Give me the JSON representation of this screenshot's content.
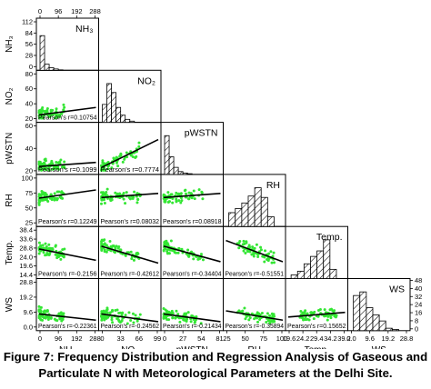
{
  "caption": {
    "line1": "Figure 7: Frequency Distribution and Regression Analysis of Gaseous and",
    "line2": "Particulate N with Meteorological Parameters at the Delhi Site."
  },
  "colors": {
    "scatter": "#33e633",
    "fit": "#000000",
    "hatch": "#000000",
    "frame": "#000000"
  },
  "chart_data": {
    "type": "scatter-matrix",
    "variables": [
      {
        "key": "NH3",
        "label": "NH₃",
        "ylabel": "NH₃",
        "range": [
          0,
          300
        ],
        "xticks": [
          "0",
          "96",
          "192",
          "288"
        ],
        "yticks": []
      },
      {
        "key": "NO2",
        "label": "NO₂",
        "ylabel": "NO₂",
        "range": [
          0,
          100
        ],
        "xticks": [
          "0",
          "33",
          "66",
          "99"
        ],
        "yticks": [
          "80",
          "60",
          "40",
          "20"
        ]
      },
      {
        "key": "pWSTN",
        "label": "pWSTN",
        "ylabel": "pWSTN",
        "range": [
          0,
          90
        ],
        "xticks": [
          "0",
          "27",
          "54",
          "81"
        ],
        "yticks": [
          "60",
          "40",
          "20"
        ]
      },
      {
        "key": "RH",
        "label": "RH",
        "ylabel": "RH",
        "range": [
          20,
          100
        ],
        "xticks": [
          "25",
          "50",
          "75",
          "100"
        ],
        "yticks": [
          "100",
          "75",
          "50",
          "25"
        ]
      },
      {
        "key": "Temp",
        "label": "Temp.",
        "ylabel": "Temp.",
        "range": [
          10,
          43
        ],
        "xticks": [
          "19.6",
          "24.2",
          "29.4",
          "34.2",
          "39.2"
        ],
        "yticks": [
          "38.4",
          "33.6",
          "28.8",
          "24.0",
          "19.6",
          "14.4"
        ]
      },
      {
        "key": "WS",
        "label": "WS",
        "ylabel": "WS",
        "range": [
          0,
          30
        ],
        "xticks": [
          "0.0",
          "9.6",
          "19.2",
          "28.8"
        ],
        "yticks": [
          "28.8",
          "19.2",
          "9.6",
          "0.0"
        ]
      }
    ],
    "top_axis": {
      "ticks": [
        "0",
        "96",
        "192",
        "288"
      ],
      "range": [
        0,
        300
      ]
    },
    "left_histogram_axis": {
      "ticks": [
        "112",
        "84",
        "56",
        "28",
        "0"
      ],
      "range": [
        0,
        112
      ]
    },
    "right_histogram_axis": {
      "ticks": [
        "48",
        "40",
        "32",
        "24",
        "16",
        "8",
        "0"
      ],
      "range": [
        0,
        48
      ]
    },
    "histograms": {
      "NH3": [
        80,
        14,
        6,
        3,
        1,
        0,
        0,
        0,
        0,
        0
      ],
      "NO2": [
        30,
        65,
        50,
        25,
        12,
        5,
        2,
        0,
        0,
        0
      ],
      "pWSTN": [
        55,
        25,
        10,
        4,
        2,
        1,
        0,
        0,
        0,
        0
      ],
      "RH": [
        10,
        13,
        17,
        22,
        28,
        21,
        7
      ],
      "Temp": [
        4,
        8,
        16,
        24,
        30,
        42,
        10
      ],
      "WS": [
        29,
        32,
        19,
        13,
        8,
        2,
        1
      ]
    },
    "pairs": [
      {
        "row": "NO2",
        "col": "NH3",
        "pearson_label": "Pearson's r=0.10754",
        "fit": [
          [
            0,
            10
          ],
          [
            300,
            26
          ]
        ]
      },
      {
        "row": "pWSTN",
        "col": "NH3",
        "pearson_label": "Pearson's r=0.1099",
        "fit": [
          [
            0,
            10
          ],
          [
            300,
            18
          ]
        ]
      },
      {
        "row": "pWSTN",
        "col": "NO2",
        "pearson_label": "Pearson's r=0.7774",
        "fit": [
          [
            0,
            8
          ],
          [
            100,
            62
          ]
        ]
      },
      {
        "row": "RH",
        "col": "NH3",
        "pearson_label": "Pearson's r=0.12249",
        "fit": [
          [
            0,
            64
          ],
          [
            300,
            78
          ]
        ]
      },
      {
        "row": "RH",
        "col": "NO2",
        "pearson_label": "Pearson's r=0.08032",
        "fit": [
          [
            0,
            65
          ],
          [
            100,
            72
          ]
        ]
      },
      {
        "row": "RH",
        "col": "pWSTN",
        "pearson_label": "Pearson's r=0.08918",
        "fit": [
          [
            0,
            65
          ],
          [
            90,
            72
          ]
        ]
      },
      {
        "row": "Temp",
        "col": "NH3",
        "pearson_label": "Pearson's r=-0.2156",
        "fit": [
          [
            0,
            29
          ],
          [
            300,
            21
          ]
        ]
      },
      {
        "row": "Temp",
        "col": "NO2",
        "pearson_label": "Pearson's r=-0.42612",
        "fit": [
          [
            0,
            31
          ],
          [
            100,
            19
          ]
        ]
      },
      {
        "row": "Temp",
        "col": "pWSTN",
        "pearson_label": "Pearson's r=-0.34404",
        "fit": [
          [
            0,
            31
          ],
          [
            90,
            20
          ]
        ]
      },
      {
        "row": "Temp",
        "col": "RH",
        "pearson_label": "Pearson's r=-0.51551",
        "fit": [
          [
            20,
            35
          ],
          [
            100,
            20
          ]
        ]
      },
      {
        "row": "WS",
        "col": "NH3",
        "pearson_label": "Pearson's r=-0.22361",
        "fit": [
          [
            0,
            9
          ],
          [
            300,
            5
          ]
        ]
      },
      {
        "row": "WS",
        "col": "NO2",
        "pearson_label": "Pearson's r=-0.24562",
        "fit": [
          [
            0,
            9
          ],
          [
            100,
            4
          ]
        ]
      },
      {
        "row": "WS",
        "col": "pWSTN",
        "pearson_label": "Pearson's r=-0.21434",
        "fit": [
          [
            0,
            9
          ],
          [
            90,
            4
          ]
        ]
      },
      {
        "row": "WS",
        "col": "RH",
        "pearson_label": "Pearson's r=-0.35894",
        "fit": [
          [
            20,
            11
          ],
          [
            100,
            5
          ]
        ]
      },
      {
        "row": "WS",
        "col": "Temp",
        "pearson_label": "Pearson's r=0.15652",
        "fit": [
          [
            10,
            7
          ],
          [
            43,
            10
          ]
        ]
      }
    ],
    "grid": false,
    "legend": "none"
  }
}
